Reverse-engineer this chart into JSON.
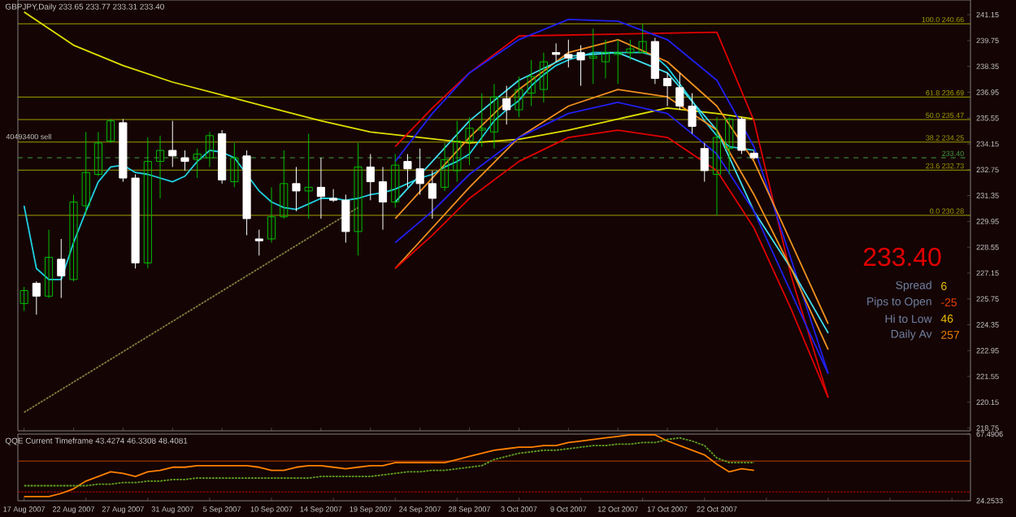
{
  "chart_data": [
    {
      "type": "candlestick",
      "title": "GBPJPY,Daily 233.65 233.77 233.31 233.40",
      "categories": [
        "17 Aug 2007",
        null,
        null,
        null,
        "22 Aug 2007",
        null,
        null,
        null,
        "27 Aug 2007",
        null,
        null,
        null,
        "31 Aug 2007",
        null,
        null,
        null,
        "5 Sep 2007",
        null,
        null,
        null,
        "10 Sep 2007",
        null,
        null,
        null,
        "14 Sep 2007",
        null,
        null,
        null,
        "19 Sep 2007",
        null,
        null,
        null,
        "24 Sep 2007",
        null,
        null,
        null,
        "28 Sep 2007",
        null,
        null,
        null,
        "3 Oct 2007",
        null,
        null,
        null,
        "9 Oct 2007",
        null,
        null,
        null,
        "12 Oct 2007",
        null,
        null,
        null,
        "17 Oct 2007",
        null,
        null,
        null,
        "22 Oct 2007",
        null,
        null,
        null,
        null,
        null,
        null,
        null,
        null,
        null,
        null,
        null,
        null,
        null,
        null,
        null,
        null,
        null,
        null,
        null,
        null
      ],
      "ohlc": [
        [
          225.5,
          226.4,
          225.1,
          226.2
        ],
        [
          226.6,
          226.7,
          224.9,
          225.9
        ],
        [
          225.9,
          229.5,
          225.8,
          228.0
        ],
        [
          227.9,
          229.0,
          225.8,
          227.0
        ],
        [
          226.8,
          231.4,
          226.7,
          231.0
        ],
        [
          230.8,
          234.8,
          230.3,
          232.6
        ],
        [
          232.5,
          234.8,
          232.4,
          234.2
        ],
        [
          234.3,
          235.5,
          234.2,
          235.4
        ],
        [
          235.3,
          235.5,
          232.1,
          232.3
        ],
        [
          232.3,
          232.5,
          227.4,
          227.7
        ],
        [
          227.7,
          234.5,
          227.4,
          233.2
        ],
        [
          233.2,
          234.6,
          231.2,
          233.8
        ],
        [
          233.8,
          235.4,
          232.9,
          233.5
        ],
        [
          233.4,
          233.8,
          232.7,
          233.2
        ],
        [
          233.3,
          233.9,
          232.3,
          233.6
        ],
        [
          233.4,
          234.8,
          232.9,
          234.6
        ],
        [
          234.7,
          234.9,
          232.0,
          232.2
        ],
        [
          232.1,
          234.2,
          231.8,
          233.4
        ],
        [
          233.5,
          233.8,
          229.2,
          230.1
        ],
        [
          229.0,
          229.5,
          228.1,
          228.9
        ],
        [
          229.0,
          231.8,
          228.8,
          230.2
        ],
        [
          230.2,
          233.8,
          230.1,
          232.0
        ],
        [
          232.0,
          232.9,
          230.5,
          231.6
        ],
        [
          231.6,
          234.7,
          230.1,
          231.8
        ],
        [
          231.8,
          233.4,
          230.1,
          231.3
        ],
        [
          231.2,
          231.7,
          231.0,
          231.1
        ],
        [
          231.1,
          231.4,
          228.8,
          229.4
        ],
        [
          229.4,
          234.2,
          228.1,
          232.9
        ],
        [
          232.9,
          233.6,
          231.1,
          232.1
        ],
        [
          232.1,
          232.9,
          229.5,
          231.0
        ],
        [
          231.0,
          233.6,
          230.7,
          233.0
        ],
        [
          233.2,
          233.6,
          231.8,
          232.8
        ],
        [
          232.8,
          233.9,
          231.4,
          232.0
        ],
        [
          232.0,
          232.7,
          230.1,
          231.2
        ],
        [
          231.8,
          234.2,
          231.6,
          233.3
        ],
        [
          232.7,
          235.4,
          232.1,
          234.3
        ],
        [
          234.3,
          235.6,
          233.0,
          235.0
        ],
        [
          234.9,
          236.9,
          234.0,
          235.0
        ],
        [
          234.8,
          237.4,
          233.9,
          236.7
        ],
        [
          236.6,
          237.3,
          235.2,
          236.0
        ],
        [
          236.0,
          237.8,
          235.6,
          237.1
        ],
        [
          236.9,
          238.7,
          236.2,
          237.8
        ],
        [
          237.1,
          239.1,
          236.4,
          238.6
        ],
        [
          239.1,
          239.6,
          238.6,
          239.0
        ],
        [
          239.0,
          239.8,
          238.3,
          238.8
        ],
        [
          239.1,
          239.5,
          237.3,
          238.7
        ],
        [
          238.8,
          240.4,
          237.4,
          238.9
        ],
        [
          238.6,
          239.8,
          237.7,
          239.1
        ],
        [
          239.0,
          239.8,
          237.4,
          239.1
        ],
        [
          239.1,
          239.8,
          238.7,
          239.3
        ],
        [
          239.1,
          240.66,
          239.1,
          239.7
        ],
        [
          239.7,
          239.9,
          237.4,
          237.7
        ],
        [
          237.7,
          238.0,
          236.2,
          237.3
        ],
        [
          237.2,
          238.0,
          236.0,
          236.2
        ],
        [
          236.2,
          236.9,
          234.7,
          235.1
        ],
        [
          233.9,
          234.2,
          232.1,
          232.7
        ],
        [
          232.5,
          235.6,
          230.28,
          234.5
        ],
        [
          233.9,
          235.6,
          232.5,
          235.5
        ],
        [
          235.5,
          235.6,
          233.6,
          233.8
        ],
        [
          233.65,
          233.77,
          233.31,
          233.4
        ],
        null,
        null,
        null,
        null,
        null,
        null,
        null,
        null,
        null,
        null,
        null,
        null,
        null,
        null,
        null,
        null,
        null
      ],
      "colors": [
        "#00c000",
        "#ffffff",
        "#00c000",
        "#ffffff",
        "#00c000",
        "#00c000",
        "#00c000",
        "#00c000",
        "#ffffff",
        "#ffffff",
        "#00c000",
        "#00c000",
        "#ffffff",
        "#ffffff",
        "#00c000",
        "#00c000",
        "#ffffff",
        "#00c000",
        "#ffffff",
        "#ffffff",
        "#00c000",
        "#00c000",
        "#ffffff",
        "#00c000",
        "#ffffff",
        "#ffffff",
        "#ffffff",
        "#00c000",
        "#ffffff",
        "#ffffff",
        "#00c000",
        "#ffffff",
        "#ffffff",
        "#ffffff",
        "#00c000",
        "#00c000",
        "#00c000",
        "#00c000",
        "#00c000",
        "#ffffff",
        "#00c000",
        "#00c000",
        "#00c000",
        "#ffffff",
        "#ffffff",
        "#ffffff",
        "#00c000",
        "#00c000",
        "#00c000",
        "#00c000",
        "#00c000",
        "#ffffff",
        "#ffffff",
        "#ffffff",
        "#ffffff",
        "#ffffff",
        "#00c000",
        "#00c000",
        "#ffffff",
        "#ffffff",
        null,
        null,
        null,
        null,
        null,
        null,
        null,
        null,
        null,
        null,
        null,
        null,
        null,
        null,
        null,
        null,
        null
      ],
      "ylim": [
        218.6,
        241.95
      ],
      "yticks": [
        218.75,
        220.15,
        221.55,
        222.95,
        224.35,
        225.75,
        227.15,
        228.55,
        229.95,
        231.35,
        232.75,
        234.15,
        235.55,
        236.95,
        238.35,
        239.75,
        241.15
      ],
      "series": [
        {
          "type": "line",
          "color": "#e0e000",
          "values": [
            241.3,
            null,
            null,
            null,
            239.5,
            null,
            null,
            null,
            238.4,
            null,
            null,
            null,
            237.5,
            null,
            null,
            null,
            236.8,
            null,
            null,
            null,
            236.1,
            null,
            null,
            null,
            235.4,
            null,
            null,
            null,
            234.8,
            null,
            null,
            null,
            234.5,
            null,
            null,
            null,
            234.2,
            null,
            null,
            null,
            234.4,
            null,
            null,
            null,
            234.9,
            null,
            null,
            null,
            235.5,
            null,
            null,
            null,
            236.1,
            null,
            null,
            null,
            235.8,
            null,
            null,
            235.5,
            null,
            null,
            null,
            null,
            null,
            null,
            null,
            null,
            null,
            null,
            null,
            null,
            null,
            null,
            null,
            null,
            null
          ]
        },
        {
          "type": "line",
          "color": "#20d0e0",
          "values": [
            230.8,
            227.4,
            226.8,
            226.8,
            228.8,
            230.5,
            232.1,
            232.9,
            233.0,
            232.6,
            232.5,
            232.3,
            232.1,
            232.4,
            233.2,
            233.8,
            233.7,
            233.4,
            232.5,
            231.6,
            231.0,
            230.7,
            230.6,
            230.9,
            231.2,
            231.2,
            231.1,
            231.2,
            231.4,
            231.5,
            231.7,
            232.0,
            232.3,
            232.5,
            232.9,
            233.2,
            233.6,
            234.5,
            235.4,
            236.0,
            236.5,
            237.3,
            237.9,
            238.4,
            238.7,
            238.9,
            239.1,
            239.1,
            239.1,
            239.1,
            239.1,
            238.9,
            238.3,
            237.4,
            236.5,
            235.4,
            234.6,
            234.0,
            233.9,
            233.8,
            null,
            null,
            null,
            null,
            null,
            null,
            null,
            null,
            null,
            null,
            null,
            null,
            null,
            null,
            null,
            null,
            null
          ]
        },
        {
          "type": "line",
          "color": "#e00000",
          "values": [
            null,
            null,
            null,
            null,
            null,
            null,
            null,
            null,
            null,
            null,
            null,
            null,
            null,
            null,
            null,
            null,
            null,
            null,
            null,
            null,
            null,
            null,
            null,
            null,
            null,
            null,
            null,
            null,
            null,
            null,
            234.0,
            null,
            null,
            236.1,
            null,
            null,
            238.0,
            null,
            null,
            null,
            240.0,
            null,
            null,
            null,
            null,
            null,
            null,
            null,
            null,
            null,
            null,
            null,
            null,
            null,
            null,
            null,
            240.2,
            null,
            null,
            235.4,
            null,
            null,
            227.0,
            null,
            null,
            220.4,
            null,
            null,
            null,
            null,
            null,
            null,
            null,
            null,
            null,
            null,
            null
          ]
        },
        {
          "type": "line",
          "color": "#2020f0",
          "values": [
            null,
            null,
            null,
            null,
            null,
            null,
            null,
            null,
            null,
            null,
            null,
            null,
            null,
            null,
            null,
            null,
            null,
            null,
            null,
            null,
            null,
            null,
            null,
            null,
            null,
            null,
            null,
            null,
            null,
            null,
            233.2,
            null,
            null,
            235.8,
            null,
            null,
            238.0,
            null,
            null,
            null,
            239.8,
            null,
            null,
            null,
            240.9,
            null,
            null,
            null,
            240.8,
            null,
            null,
            null,
            239.8,
            null,
            null,
            null,
            237.6,
            null,
            null,
            234.0,
            null,
            null,
            227.9,
            null,
            null,
            221.7,
            null,
            null,
            null,
            null,
            null,
            null,
            null,
            null,
            null,
            null,
            null
          ]
        },
        {
          "type": "line",
          "color": "#f09020",
          "values": [
            null,
            null,
            null,
            null,
            null,
            null,
            null,
            null,
            null,
            null,
            null,
            null,
            null,
            null,
            null,
            null,
            null,
            null,
            null,
            null,
            null,
            null,
            null,
            null,
            null,
            null,
            null,
            null,
            null,
            null,
            230.1,
            null,
            null,
            232.3,
            null,
            null,
            234.5,
            null,
            null,
            null,
            237.1,
            null,
            null,
            null,
            239.1,
            null,
            null,
            null,
            239.8,
            null,
            null,
            null,
            238.6,
            null,
            null,
            null,
            236.2,
            null,
            null,
            233.2,
            null,
            null,
            228.8,
            null,
            null,
            224.4,
            null,
            null,
            null,
            null,
            null,
            null,
            null,
            null,
            null,
            null,
            null
          ]
        },
        {
          "type": "line",
          "color": "#40e0f0",
          "values": [
            null,
            null,
            null,
            null,
            null,
            null,
            null,
            null,
            null,
            null,
            null,
            null,
            null,
            null,
            null,
            null,
            null,
            null,
            null,
            null,
            null,
            null,
            null,
            null,
            null,
            null,
            null,
            null,
            null,
            null,
            231.0,
            null,
            null,
            233.2,
            null,
            null,
            235.4,
            null,
            null,
            null,
            237.6,
            null,
            null,
            null,
            238.9,
            null,
            null,
            null,
            239.1,
            null,
            null,
            null,
            238.0,
            null,
            null,
            null,
            234.9,
            null,
            null,
            230.5,
            null,
            null,
            227.4,
            null,
            null,
            223.9,
            null,
            null,
            null,
            null,
            null,
            null,
            null,
            null,
            null,
            null,
            null
          ]
        },
        {
          "type": "line",
          "color": "#f09020",
          "values": [
            null,
            null,
            null,
            null,
            null,
            null,
            null,
            null,
            null,
            null,
            null,
            null,
            null,
            null,
            null,
            null,
            null,
            null,
            null,
            null,
            null,
            null,
            null,
            null,
            null,
            null,
            null,
            null,
            null,
            null,
            227.4,
            null,
            null,
            229.6,
            null,
            null,
            231.8,
            null,
            null,
            null,
            234.5,
            null,
            null,
            null,
            236.2,
            null,
            null,
            null,
            237.1,
            null,
            null,
            null,
            236.7,
            null,
            null,
            null,
            234.9,
            null,
            null,
            231.4,
            null,
            null,
            227.4,
            null,
            null,
            223.0,
            null,
            null,
            null,
            null,
            null,
            null,
            null,
            null,
            null,
            null,
            null
          ]
        },
        {
          "type": "line",
          "color": "#2020f0",
          "values": [
            null,
            null,
            null,
            null,
            null,
            null,
            null,
            null,
            null,
            null,
            null,
            null,
            null,
            null,
            null,
            null,
            null,
            null,
            null,
            null,
            null,
            null,
            null,
            null,
            null,
            null,
            null,
            null,
            null,
            null,
            228.8,
            null,
            null,
            230.5,
            null,
            null,
            232.5,
            null,
            null,
            null,
            234.5,
            null,
            null,
            null,
            235.8,
            null,
            null,
            null,
            236.4,
            null,
            null,
            null,
            235.8,
            null,
            null,
            null,
            233.6,
            null,
            null,
            230.5,
            null,
            null,
            226.1,
            null,
            null,
            221.7,
            null,
            null,
            null,
            null,
            null,
            null,
            null,
            null,
            null,
            null,
            null
          ]
        },
        {
          "type": "line",
          "color": "#e00000",
          "values": [
            null,
            null,
            null,
            null,
            null,
            null,
            null,
            null,
            null,
            null,
            null,
            null,
            null,
            null,
            null,
            null,
            null,
            null,
            null,
            null,
            null,
            null,
            null,
            null,
            null,
            null,
            null,
            null,
            null,
            null,
            227.4,
            null,
            null,
            229.2,
            null,
            null,
            231.2,
            null,
            null,
            null,
            233.2,
            null,
            null,
            null,
            234.5,
            null,
            null,
            null,
            234.9,
            null,
            null,
            null,
            234.5,
            null,
            null,
            null,
            232.7,
            null,
            null,
            229.6,
            null,
            null,
            225.2,
            null,
            null,
            220.4,
            null,
            null,
            null,
            null,
            null,
            null,
            null,
            null,
            null,
            null,
            null
          ]
        },
        {
          "type": "line",
          "color": "#808040",
          "line_style": "dotted",
          "values": [
            219.6,
            null,
            null,
            null,
            null,
            null,
            null,
            null,
            null,
            null,
            null,
            null,
            null,
            null,
            null,
            null,
            null,
            null,
            null,
            null,
            null,
            null,
            null,
            null,
            null,
            null,
            null,
            230.7,
            null,
            null,
            null,
            null,
            null,
            null,
            null,
            null,
            null,
            null,
            null,
            null,
            null,
            null,
            null,
            null,
            null,
            null,
            null,
            null,
            null,
            null,
            null,
            null,
            null,
            null,
            null,
            null,
            null,
            null,
            null,
            null,
            null,
            null,
            null,
            null,
            null,
            null,
            null,
            null,
            null,
            null,
            null,
            null,
            null,
            null,
            null,
            null,
            null
          ]
        }
      ],
      "ref_lines": [
        {
          "axis": "y",
          "value": 240.66,
          "label": "100.0 240.66",
          "color": "#a0a000",
          "line_style": "solid"
        },
        {
          "axis": "y",
          "value": 236.69,
          "label": "61.8 236.69",
          "color": "#a0a000",
          "line_style": "solid"
        },
        {
          "axis": "y",
          "value": 235.47,
          "label": "50.0 235.47",
          "color": "#a0a000",
          "line_style": "solid"
        },
        {
          "axis": "y",
          "value": 234.25,
          "label": "38.2 234.25",
          "color": "#a0a000",
          "line_style": "solid"
        },
        {
          "axis": "y",
          "value": 233.4,
          "label": "233.40",
          "color": "#40a040",
          "line_style": "dashed"
        },
        {
          "axis": "y",
          "value": 232.73,
          "label": "23.6 232.73",
          "color": "#a0a000",
          "line_style": "solid"
        },
        {
          "axis": "y",
          "value": 230.28,
          "label": "0.0 230.28",
          "color": "#a0a000",
          "line_style": "solid"
        }
      ],
      "annotations": [
        "233.40",
        "Spread",
        "6",
        "Pips to Open",
        "-25",
        "Hi to Low",
        "46",
        "Daily Av",
        "257",
        "40493400 sell"
      ]
    },
    {
      "type": "line",
      "title": "QQE Current Timeframe 43.4274 46.3308 48.4081",
      "tick_labels": "y",
      "categories": [
        null,
        null,
        null,
        null,
        null,
        null,
        null,
        null,
        null,
        null,
        null,
        null,
        null,
        null,
        null,
        null,
        null,
        null,
        null,
        null,
        null,
        null,
        null,
        null,
        null,
        null,
        null,
        null,
        null,
        null,
        null,
        null,
        null,
        null,
        null,
        null,
        null,
        null,
        null,
        null,
        null,
        null,
        null,
        null,
        null,
        null,
        null,
        null,
        null,
        null,
        null,
        null,
        null,
        null,
        null,
        null,
        null,
        null,
        null,
        null,
        null,
        null,
        null,
        null,
        null,
        null,
        null,
        null,
        null,
        null,
        null,
        null,
        null,
        null,
        null,
        null,
        null
      ],
      "ylim": [
        24.2533,
        67.4906
      ],
      "yticks": [
        24.2533,
        67.4906
      ],
      "series": [
        {
          "color": "#ff8000",
          "values": [
            27,
            27,
            27,
            29,
            32,
            37,
            40,
            43,
            42,
            40,
            43,
            44,
            46,
            46,
            47,
            47,
            47,
            47,
            47,
            46,
            44,
            44,
            46,
            47,
            47,
            46,
            45,
            46,
            47,
            47,
            49,
            49,
            49,
            49,
            49,
            51,
            53,
            55,
            57,
            58,
            59,
            59,
            60,
            60,
            62,
            63,
            64,
            65,
            66,
            67,
            67,
            67,
            63,
            60,
            57,
            54,
            48,
            43,
            45,
            44,
            null,
            null,
            null,
            null,
            null,
            null,
            null,
            null,
            null,
            null,
            null,
            null,
            null,
            null,
            null,
            null,
            null
          ]
        },
        {
          "color": "#60a020",
          "line_style": "dotted",
          "values": [
            34,
            34,
            34,
            34,
            34,
            34,
            35,
            35,
            36,
            36,
            37,
            37,
            38,
            38,
            39,
            39,
            39,
            39,
            39,
            39,
            39,
            39,
            39,
            39,
            40,
            40,
            40,
            40,
            40,
            41,
            42,
            43,
            43,
            44,
            44,
            45,
            46,
            47,
            51,
            53,
            55,
            56,
            57,
            57,
            58,
            59,
            60,
            60,
            61,
            61,
            62,
            62,
            64,
            65,
            63,
            60,
            52,
            49,
            49,
            49,
            null,
            null,
            null,
            null,
            null,
            null,
            null,
            null,
            null,
            null,
            null,
            null,
            null,
            null,
            null,
            null,
            null
          ]
        }
      ],
      "ref_lines": [
        {
          "axis": "y",
          "value": 50,
          "color": "#c04000",
          "line_style": "solid"
        },
        {
          "axis": "y",
          "value": 30,
          "color": "#c00000",
          "line_style": "dotted"
        }
      ]
    }
  ]
}
